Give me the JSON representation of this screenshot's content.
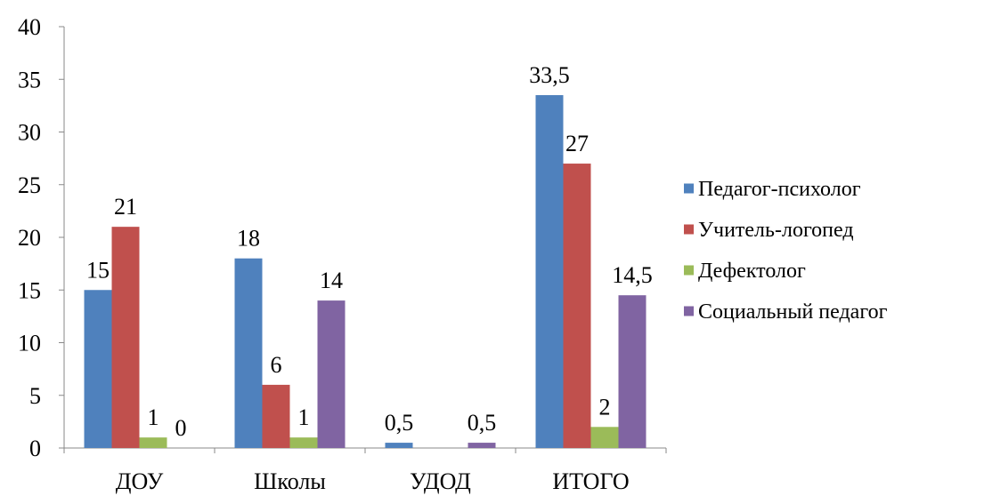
{
  "chart_data": {
    "type": "bar",
    "categories": [
      "ДОУ",
      "Школы",
      "УДОД",
      "ИТОГО"
    ],
    "series": [
      {
        "name": "Педагог-психолог",
        "color": "#4F81BD",
        "values": [
          15,
          18,
          0.5,
          33.5
        ],
        "labels": [
          "15",
          "18",
          "0,5",
          "33,5"
        ]
      },
      {
        "name": "Учитель-логопед",
        "color": "#C0504D",
        "values": [
          21,
          6,
          0,
          27
        ],
        "labels": [
          "21",
          "6",
          "",
          "27"
        ]
      },
      {
        "name": "Дефектолог",
        "color": "#9BBB59",
        "values": [
          1,
          1,
          0,
          2
        ],
        "labels": [
          "1",
          "1",
          "",
          "2"
        ]
      },
      {
        "name": "Социальный педагог",
        "color": "#8064A2",
        "values": [
          0,
          14,
          0.5,
          14.5
        ],
        "labels": [
          "0",
          "14",
          "0,5",
          "14,5"
        ]
      }
    ],
    "ylim": [
      0,
      40
    ],
    "yticks": [
      0,
      5,
      10,
      15,
      20,
      25,
      30,
      35,
      40
    ],
    "grid": false,
    "legend": "right"
  }
}
